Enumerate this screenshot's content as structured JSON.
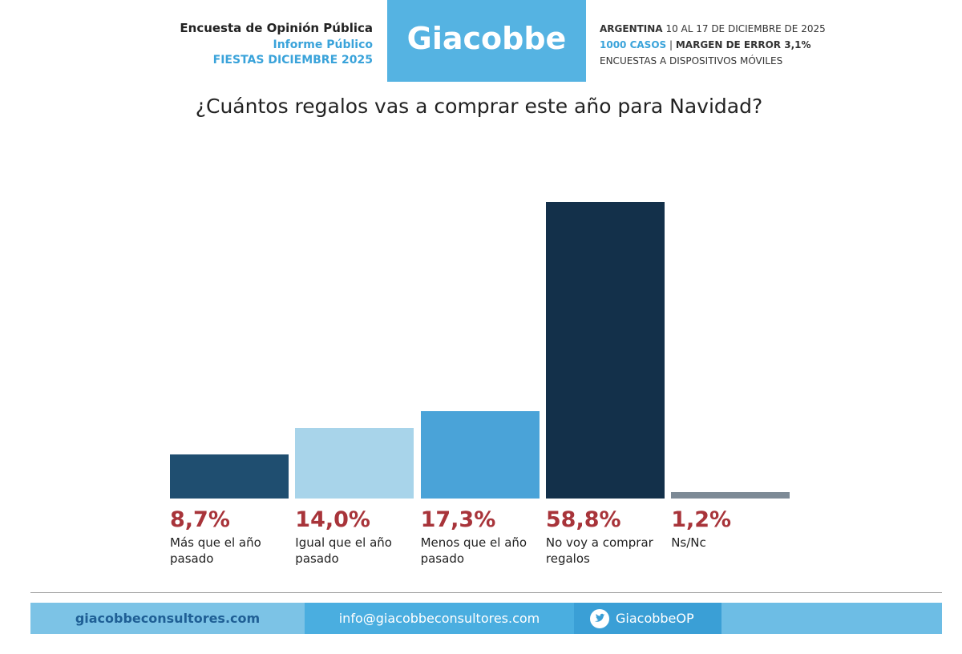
{
  "header": {
    "title": "Encuesta de Opinión Pública",
    "subtitle": "Informe Público",
    "edition": "FIESTAS DICIEMBRE 2025",
    "brand": "Giacobbe",
    "info": {
      "country": "ARGENTINA",
      "dates": "10 AL 17 DE DICIEMBRE DE 2025",
      "cases": "1000 CASOS",
      "separator": "|",
      "margin": "MARGEN DE ERROR 3,1%",
      "method": "ENCUESTAS A DISPOSITIVOS MÓVILES"
    }
  },
  "chart_data": {
    "type": "bar",
    "title": "¿Cuántos regalos vas a comprar este año para Navidad?",
    "categories": [
      "Más que el año pasado",
      "Igual que el año pasado",
      "Menos que el año pasado",
      "No voy a comprar regalos",
      "Ns/Nc"
    ],
    "values": [
      8.7,
      14.0,
      17.3,
      58.8,
      1.2
    ],
    "value_labels": [
      "8,7%",
      "14,0%",
      "17,3%",
      "58,8%",
      "1,2%"
    ],
    "colors": [
      "#1f4e70",
      "#a8d4ea",
      "#4aa3d8",
      "#13304a",
      "#7d8a96"
    ]
  },
  "footer": {
    "website": "giacobbeconsultores.com",
    "email": "info@giacobbeconsultores.com",
    "twitter": "GiacobbeOP"
  }
}
